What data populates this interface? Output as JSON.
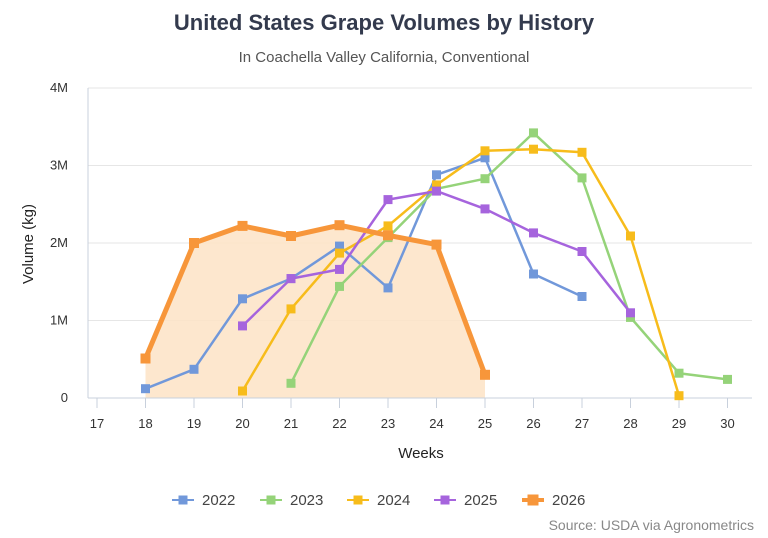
{
  "header": {
    "title": "United States Grape Volumes by History",
    "subtitle": "In Coachella Valley California, Conventional"
  },
  "footer": {
    "source": "Source: USDA via Agronometrics"
  },
  "chart_data": {
    "type": "line",
    "title": "United States Grape Volumes by History",
    "subtitle": "In Coachella Valley California, Conventional",
    "xlabel": "Weeks",
    "ylabel": "Volume (kg)",
    "xlim": [
      17,
      30
    ],
    "ylim": [
      0,
      4000000
    ],
    "x_ticks": [
      "17",
      "18",
      "19",
      "20",
      "21",
      "22",
      "23",
      "24",
      "25",
      "26",
      "27",
      "28",
      "29",
      "30"
    ],
    "y_ticks": [
      {
        "value": 0,
        "label": "0"
      },
      {
        "value": 1000000,
        "label": "1M"
      },
      {
        "value": 2000000,
        "label": "2M"
      },
      {
        "value": 3000000,
        "label": "3M"
      },
      {
        "value": 4000000,
        "label": "4M"
      }
    ],
    "grid": true,
    "legend_position": "bottom",
    "series": [
      {
        "name": "2022",
        "color": "#7198da",
        "width": 2.5,
        "area": false,
        "points": [
          [
            18,
            120000
          ],
          [
            19,
            370000
          ],
          [
            20,
            1280000
          ],
          [
            21,
            1540000
          ],
          [
            22,
            1960000
          ],
          [
            23,
            1420000
          ],
          [
            24,
            2880000
          ],
          [
            25,
            3100000
          ],
          [
            26,
            1600000
          ],
          [
            27,
            1310000
          ]
        ]
      },
      {
        "name": "2023",
        "color": "#95d379",
        "width": 2.5,
        "area": false,
        "points": [
          [
            21,
            190000
          ],
          [
            22,
            1440000
          ],
          [
            23,
            2070000
          ],
          [
            24,
            2700000
          ],
          [
            25,
            2830000
          ],
          [
            26,
            3420000
          ],
          [
            27,
            2840000
          ],
          [
            28,
            1040000
          ],
          [
            29,
            320000
          ],
          [
            30,
            240000
          ]
        ]
      },
      {
        "name": "2024",
        "color": "#f7bc1b",
        "width": 2.5,
        "area": false,
        "points": [
          [
            20,
            90000
          ],
          [
            21,
            1150000
          ],
          [
            22,
            1870000
          ],
          [
            23,
            2220000
          ],
          [
            24,
            2750000
          ],
          [
            25,
            3190000
          ],
          [
            26,
            3210000
          ],
          [
            27,
            3170000
          ],
          [
            28,
            2090000
          ],
          [
            29,
            30000
          ]
        ]
      },
      {
        "name": "2025",
        "color": "#a664dd",
        "width": 2.5,
        "area": false,
        "points": [
          [
            20,
            930000
          ],
          [
            21,
            1540000
          ],
          [
            22,
            1660000
          ],
          [
            23,
            2560000
          ],
          [
            24,
            2670000
          ],
          [
            25,
            2440000
          ],
          [
            26,
            2130000
          ],
          [
            27,
            1890000
          ],
          [
            28,
            1100000
          ]
        ]
      },
      {
        "name": "2026",
        "color": "#f7963a",
        "width": 5,
        "area": true,
        "points": [
          [
            18,
            510000
          ],
          [
            19,
            2000000
          ],
          [
            20,
            2220000
          ],
          [
            21,
            2090000
          ],
          [
            22,
            2230000
          ],
          [
            23,
            2100000
          ],
          [
            24,
            1980000
          ],
          [
            25,
            300000
          ]
        ]
      }
    ]
  }
}
